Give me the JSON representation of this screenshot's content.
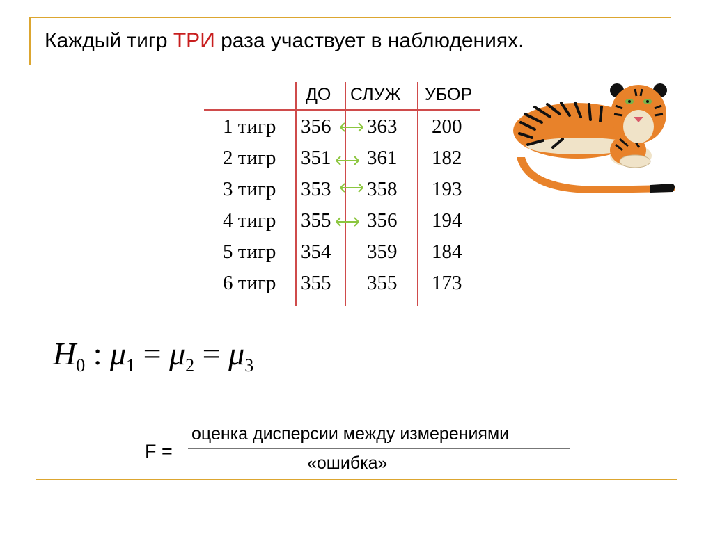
{
  "title": {
    "before": "Каждый тигр ",
    "highlight": "ТРИ",
    "after": " раза участвует в наблюдениях."
  },
  "table": {
    "headers": [
      "ДО",
      "СЛУЖ",
      "УБОР"
    ],
    "rows": [
      {
        "label": "1 тигр",
        "values": [
          "356",
          "363",
          "200"
        ]
      },
      {
        "label": "2 тигр",
        "values": [
          "351",
          "361",
          "182"
        ]
      },
      {
        "label": "3 тигр",
        "values": [
          "353",
          "358",
          "193"
        ]
      },
      {
        "label": "4 тигр",
        "values": [
          "355",
          "356",
          "194"
        ]
      },
      {
        "label": "5 тигр",
        "values": [
          "354",
          "359",
          "184"
        ]
      },
      {
        "label": "6 тигр",
        "values": [
          "355",
          "355",
          "173"
        ]
      }
    ]
  },
  "hypothesis": {
    "H": "H",
    "h_sub": "0",
    "colon": " : ",
    "mu": "μ",
    "sub1": "1",
    "sub2": "2",
    "sub3": "3",
    "eq": " = "
  },
  "f_formula": {
    "lhs": "F =",
    "numerator": "оценка дисперсии между измерениями",
    "denominator": "«ошибка»"
  },
  "colors": {
    "accent_bar": "#dca630",
    "table_lines": "#cf4b4b",
    "title_highlight": "#c81e1e",
    "arrow": "#8cc63f"
  },
  "illustration": "tiger-illustration"
}
